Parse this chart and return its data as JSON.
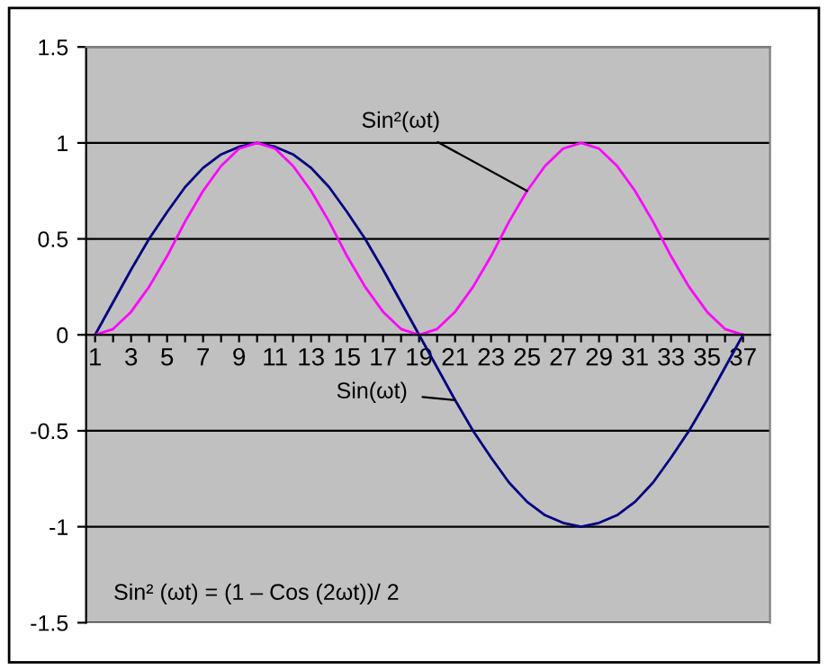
{
  "chart_data": {
    "type": "line",
    "categories": [
      "1",
      null,
      "3",
      null,
      "5",
      null,
      "7",
      null,
      "9",
      null,
      "11",
      null,
      "13",
      null,
      "15",
      null,
      "17",
      null,
      "19",
      null,
      "21",
      null,
      "23",
      null,
      "25",
      null,
      "27",
      null,
      "29",
      null,
      "31",
      null,
      "33",
      null,
      "35",
      null,
      "37"
    ],
    "series": [
      {
        "name": "Sin(ωt)",
        "color": "#000080",
        "values": [
          0,
          0.17,
          0.34,
          0.5,
          0.64,
          0.77,
          0.87,
          0.94,
          0.98,
          1,
          0.98,
          0.94,
          0.87,
          0.77,
          0.64,
          0.5,
          0.34,
          0.17,
          0,
          -0.17,
          -0.34,
          -0.5,
          -0.64,
          -0.77,
          -0.87,
          -0.94,
          -0.98,
          -1,
          -0.98,
          -0.94,
          -0.87,
          -0.77,
          -0.64,
          -0.5,
          -0.34,
          -0.17,
          0
        ]
      },
      {
        "name": "Sin²(ωt)",
        "color": "#ff00ff",
        "values": [
          0,
          0.03,
          0.12,
          0.25,
          0.41,
          0.59,
          0.75,
          0.88,
          0.97,
          1,
          0.97,
          0.88,
          0.75,
          0.59,
          0.41,
          0.25,
          0.12,
          0.03,
          0,
          0.03,
          0.12,
          0.25,
          0.41,
          0.59,
          0.75,
          0.88,
          0.97,
          1,
          0.97,
          0.88,
          0.75,
          0.59,
          0.41,
          0.25,
          0.12,
          0.03,
          0
        ]
      }
    ],
    "ylim": [
      -1.5,
      1.5
    ],
    "yticks": [
      -1.5,
      -1,
      -0.5,
      0,
      0.5,
      1,
      1.5
    ],
    "grid": "y",
    "legend": false,
    "marker": "none",
    "line_style": "solid",
    "annotations": [
      "Sin² (ωt) = (1 – Cos (2ωt))/ 2"
    ]
  }
}
